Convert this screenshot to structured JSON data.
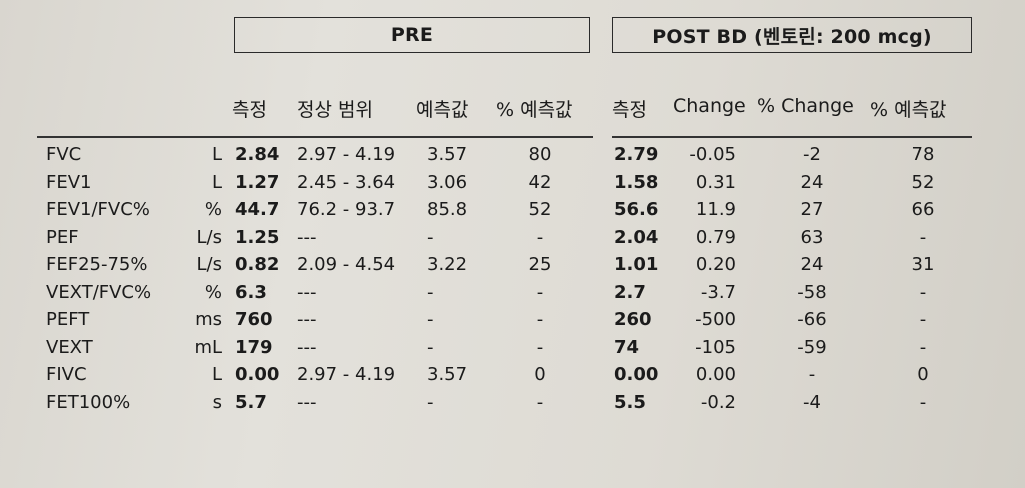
{
  "pre_header": "PRE",
  "post_header": "POST BD (벤토린: 200 mcg)",
  "columns": {
    "pre_measured": "측정",
    "normal_range": "정상 범위",
    "predicted": "예측값",
    "pct_predicted": "% 예측값",
    "post_measured": "측정",
    "change": "Change",
    "pct_change": "% Change",
    "post_pct_predicted": "% 예측값"
  },
  "rows": [
    {
      "name": "FVC",
      "unit": "L",
      "pre": "2.84",
      "range": "2.97 - 4.19",
      "pred": "3.57",
      "pct_pred": "80",
      "post": "2.79",
      "change": "-0.05",
      "pct_change": "-2",
      "post_pct_pred": "78"
    },
    {
      "name": "FEV1",
      "unit": "L",
      "pre": "1.27",
      "range": "2.45 - 3.64",
      "pred": "3.06",
      "pct_pred": "42",
      "post": "1.58",
      "change": "0.31",
      "pct_change": "24",
      "post_pct_pred": "52"
    },
    {
      "name": "FEV1/FVC%",
      "unit": "%",
      "pre": "44.7",
      "range": "76.2 - 93.7",
      "pred": "85.8",
      "pct_pred": "52",
      "post": "56.6",
      "change": "11.9",
      "pct_change": "27",
      "post_pct_pred": "66"
    },
    {
      "name": "PEF",
      "unit": "L/s",
      "pre": "1.25",
      "range": "---",
      "pred": "-",
      "pct_pred": "-",
      "post": "2.04",
      "change": "0.79",
      "pct_change": "63",
      "post_pct_pred": "-"
    },
    {
      "name": "FEF25-75%",
      "unit": "L/s",
      "pre": "0.82",
      "range": "2.09 - 4.54",
      "pred": "3.22",
      "pct_pred": "25",
      "post": "1.01",
      "change": "0.20",
      "pct_change": "24",
      "post_pct_pred": "31"
    },
    {
      "name": "VEXT/FVC%",
      "unit": "%",
      "pre": "6.3",
      "range": "---",
      "pred": "-",
      "pct_pred": "-",
      "post": "2.7",
      "change": "-3.7",
      "pct_change": "-58",
      "post_pct_pred": "-"
    },
    {
      "name": "PEFT",
      "unit": "ms",
      "pre": "760",
      "range": "---",
      "pred": "-",
      "pct_pred": "-",
      "post": "260",
      "change": "-500",
      "pct_change": "-66",
      "post_pct_pred": "-"
    },
    {
      "name": "VEXT",
      "unit": "mL",
      "pre": "179",
      "range": "---",
      "pred": "-",
      "pct_pred": "-",
      "post": "74",
      "change": "-105",
      "pct_change": "-59",
      "post_pct_pred": "-"
    },
    {
      "name": "FIVC",
      "unit": "L",
      "pre": "0.00",
      "range": "2.97 - 4.19",
      "pred": "3.57",
      "pct_pred": "0",
      "post": "0.00",
      "change": "0.00",
      "pct_change": "-",
      "post_pct_pred": "0"
    },
    {
      "name": "FET100%",
      "unit": "s",
      "pre": "5.7",
      "range": "---",
      "pred": "-",
      "pct_pred": "-",
      "post": "5.5",
      "change": "-0.2",
      "pct_change": "-4",
      "post_pct_pred": "-"
    }
  ]
}
